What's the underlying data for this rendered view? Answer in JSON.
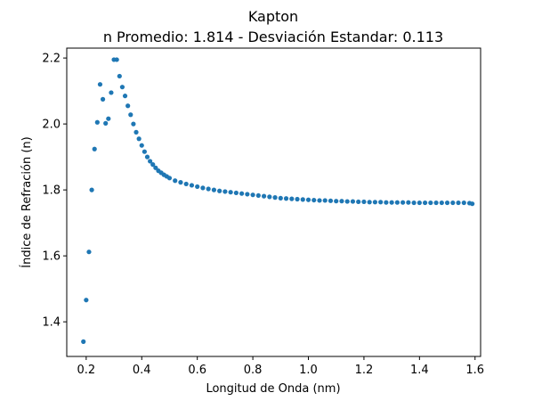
{
  "chart_data": {
    "type": "scatter",
    "title": "Kapton",
    "subtitle": "n Promedio: 1.814 - Desviación Estandar: 0.113",
    "xlabel": "Longitud de Onda (nm)",
    "ylabel": "Índice de Refración (n)",
    "xlim": [
      0.13,
      1.62
    ],
    "ylim": [
      1.295,
      2.23
    ],
    "xticks": [
      0.2,
      0.4,
      0.6,
      0.8,
      1.0,
      1.2,
      1.4,
      1.6
    ],
    "xtick_labels": [
      "0.2",
      "0.4",
      "0.6",
      "0.8",
      "1.0",
      "1.2",
      "1.4",
      "1.6"
    ],
    "yticks": [
      1.4,
      1.6,
      1.8,
      2.0,
      2.2
    ],
    "ytick_labels": [
      "1.4",
      "1.6",
      "1.8",
      "2.0",
      "2.2"
    ],
    "grid": false,
    "marker_color": "#1f77b4",
    "series": [
      {
        "points": [
          [
            0.19,
            1.34
          ],
          [
            0.2,
            1.466
          ],
          [
            0.21,
            1.612
          ],
          [
            0.22,
            1.8
          ],
          [
            0.23,
            1.924
          ],
          [
            0.24,
            2.005
          ],
          [
            0.25,
            2.12
          ],
          [
            0.26,
            2.075
          ],
          [
            0.27,
            2.002
          ],
          [
            0.28,
            2.016
          ],
          [
            0.29,
            2.095
          ],
          [
            0.3,
            2.195
          ],
          [
            0.31,
            2.195
          ],
          [
            0.32,
            2.145
          ],
          [
            0.33,
            2.112
          ],
          [
            0.34,
            2.085
          ],
          [
            0.35,
            2.055
          ],
          [
            0.36,
            2.028
          ],
          [
            0.37,
            2.0
          ],
          [
            0.38,
            1.975
          ],
          [
            0.39,
            1.955
          ],
          [
            0.4,
            1.935
          ],
          [
            0.41,
            1.916
          ],
          [
            0.42,
            1.9
          ],
          [
            0.43,
            1.887
          ],
          [
            0.44,
            1.877
          ],
          [
            0.45,
            1.867
          ],
          [
            0.46,
            1.858
          ],
          [
            0.47,
            1.852
          ],
          [
            0.48,
            1.846
          ],
          [
            0.49,
            1.841
          ],
          [
            0.5,
            1.836
          ],
          [
            0.52,
            1.828
          ],
          [
            0.54,
            1.823
          ],
          [
            0.56,
            1.818
          ],
          [
            0.58,
            1.814
          ],
          [
            0.6,
            1.81
          ],
          [
            0.62,
            1.806
          ],
          [
            0.64,
            1.803
          ],
          [
            0.66,
            1.8
          ],
          [
            0.68,
            1.797
          ],
          [
            0.7,
            1.795
          ],
          [
            0.72,
            1.793
          ],
          [
            0.74,
            1.791
          ],
          [
            0.76,
            1.789
          ],
          [
            0.78,
            1.787
          ],
          [
            0.8,
            1.785
          ],
          [
            0.82,
            1.783
          ],
          [
            0.84,
            1.781
          ],
          [
            0.86,
            1.779
          ],
          [
            0.88,
            1.777
          ],
          [
            0.9,
            1.775
          ],
          [
            0.92,
            1.774
          ],
          [
            0.94,
            1.773
          ],
          [
            0.96,
            1.772
          ],
          [
            0.98,
            1.771
          ],
          [
            1.0,
            1.77
          ],
          [
            1.02,
            1.769
          ],
          [
            1.04,
            1.768
          ],
          [
            1.06,
            1.768
          ],
          [
            1.08,
            1.767
          ],
          [
            1.1,
            1.766
          ],
          [
            1.12,
            1.766
          ],
          [
            1.14,
            1.765
          ],
          [
            1.16,
            1.765
          ],
          [
            1.18,
            1.764
          ],
          [
            1.2,
            1.764
          ],
          [
            1.22,
            1.763
          ],
          [
            1.24,
            1.763
          ],
          [
            1.26,
            1.763
          ],
          [
            1.28,
            1.762
          ],
          [
            1.3,
            1.762
          ],
          [
            1.32,
            1.762
          ],
          [
            1.34,
            1.762
          ],
          [
            1.36,
            1.762
          ],
          [
            1.38,
            1.761
          ],
          [
            1.4,
            1.761
          ],
          [
            1.42,
            1.761
          ],
          [
            1.44,
            1.761
          ],
          [
            1.46,
            1.761
          ],
          [
            1.48,
            1.761
          ],
          [
            1.5,
            1.761
          ],
          [
            1.52,
            1.761
          ],
          [
            1.54,
            1.761
          ],
          [
            1.56,
            1.761
          ],
          [
            1.58,
            1.76
          ],
          [
            1.59,
            1.758
          ]
        ]
      }
    ]
  }
}
